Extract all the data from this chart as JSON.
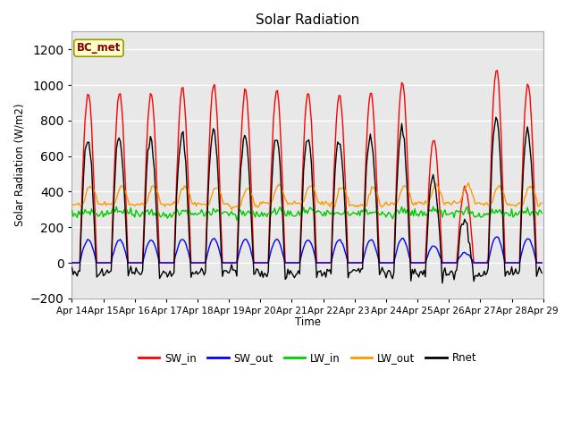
{
  "title": "Solar Radiation",
  "ylabel": "Solar Radiation (W/m2)",
  "xlabel": "Time",
  "ylim": [
    -200,
    1300
  ],
  "yticks": [
    -200,
    0,
    200,
    400,
    600,
    800,
    1000,
    1200
  ],
  "annotation": "BC_met",
  "legend_entries": [
    "SW_in",
    "SW_out",
    "LW_in",
    "LW_out",
    "Rnet"
  ],
  "legend_colors": [
    "#ff0000",
    "#0000ff",
    "#00cc00",
    "#ff9900",
    "#000000"
  ],
  "fig_bg": "#ffffff",
  "plot_bg": "#e8e8e8",
  "grid_color": "#ffffff",
  "start_day": 14,
  "n_days": 15
}
